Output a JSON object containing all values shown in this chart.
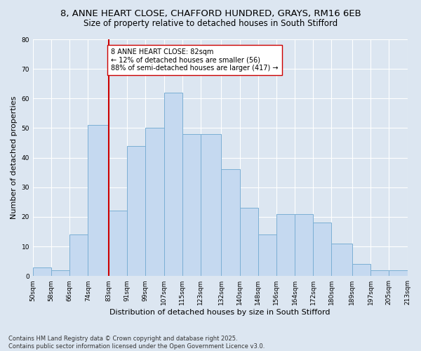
{
  "title": "8, ANNE HEART CLOSE, CHAFFORD HUNDRED, GRAYS, RM16 6EB",
  "subtitle": "Size of property relative to detached houses in South Stifford",
  "xlabel": "Distribution of detached houses by size in South Stifford",
  "ylabel": "Number of detached properties",
  "bar_color": "#c5d9f0",
  "bar_edge_color": "#7bafd4",
  "background_color": "#dce6f1",
  "plot_bg_color": "#dce6f1",
  "grid_color": "#ffffff",
  "bins": [
    50,
    58,
    66,
    74,
    83,
    91,
    99,
    107,
    115,
    123,
    132,
    140,
    148,
    156,
    164,
    172,
    180,
    189,
    197,
    205,
    213
  ],
  "bin_labels": [
    "50sqm",
    "58sqm",
    "66sqm",
    "74sqm",
    "83sqm",
    "91sqm",
    "99sqm",
    "107sqm",
    "115sqm",
    "123sqm",
    "132sqm",
    "140sqm",
    "148sqm",
    "156sqm",
    "164sqm",
    "172sqm",
    "180sqm",
    "189sqm",
    "197sqm",
    "205sqm",
    "213sqm"
  ],
  "bar_heights": [
    3,
    2,
    14,
    51,
    22,
    44,
    50,
    62,
    48,
    48,
    36,
    23,
    14,
    21,
    21,
    18,
    11,
    4,
    2,
    2
  ],
  "vline_x": 83,
  "vline_color": "#cc0000",
  "annotation_text": "8 ANNE HEART CLOSE: 82sqm\n← 12% of detached houses are smaller (56)\n88% of semi-detached houses are larger (417) →",
  "annotation_box_color": "#cc0000",
  "ylim": [
    0,
    80
  ],
  "yticks": [
    0,
    10,
    20,
    30,
    40,
    50,
    60,
    70,
    80
  ],
  "footnote": "Contains HM Land Registry data © Crown copyright and database right 2025.\nContains public sector information licensed under the Open Government Licence v3.0.",
  "title_fontsize": 9.5,
  "subtitle_fontsize": 8.5,
  "xlabel_fontsize": 8,
  "ylabel_fontsize": 8,
  "tick_fontsize": 6.5,
  "annotation_fontsize": 7,
  "footnote_fontsize": 6
}
